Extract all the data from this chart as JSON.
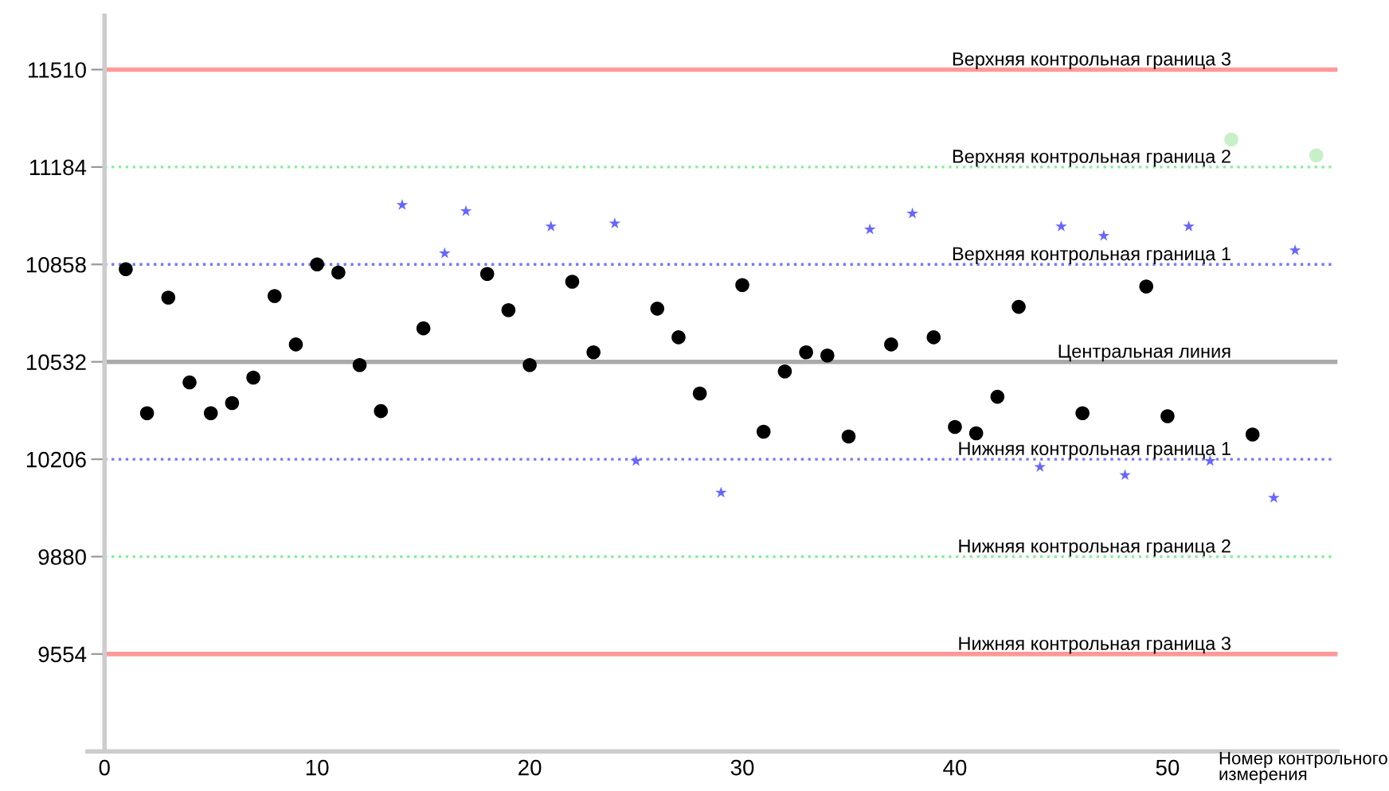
{
  "chart_data": {
    "type": "scatter",
    "xlabel": "Номер контрольного\nизмерения",
    "xlim": [
      -0.8,
      58
    ],
    "ylim": [
      9228,
      11690
    ],
    "xticks": [
      0,
      10,
      20,
      30,
      40,
      50
    ],
    "yticks": [
      9554,
      9880,
      10206,
      10532,
      10858,
      11184,
      11510
    ],
    "grid": false,
    "legend": false,
    "series": [
      {
        "color": "#000000",
        "marker": "circle",
        "x": [
          1,
          2,
          3,
          4,
          5,
          6,
          7,
          8,
          9,
          10,
          11,
          12,
          13,
          15,
          18,
          19,
          20,
          22,
          23,
          26,
          27,
          28,
          30,
          31,
          32,
          33,
          34,
          35,
          37,
          39,
          40,
          41,
          42,
          43,
          46,
          49,
          50,
          54
        ],
        "values": [
          10842,
          10360,
          10747,
          10463,
          10360,
          10394,
          10479,
          10752,
          10590,
          10858,
          10831,
          10521,
          10367,
          10644,
          10826,
          10705,
          10521,
          10800,
          10564,
          10710,
          10614,
          10426,
          10789,
          10298,
          10500,
          10564,
          10553,
          10282,
          10590,
          10614,
          10314,
          10293,
          10415,
          10716,
          10360,
          10784,
          10350,
          10289
        ]
      },
      {
        "color": "#6666ff",
        "marker": "star",
        "x": [
          14,
          16,
          17,
          21,
          24,
          25,
          29,
          36,
          38,
          44,
          45,
          47,
          48,
          51,
          52,
          55,
          56
        ],
        "values": [
          11057,
          10895,
          11036,
          10985,
          10995,
          10200,
          10094,
          10975,
          11028,
          10180,
          10985,
          10954,
          10153,
          10985,
          10200,
          10077,
          10905
        ]
      },
      {
        "color": "#c8f0c8",
        "marker": "circle",
        "x": [
          53,
          57
        ],
        "values": [
          11276,
          11223
        ]
      }
    ],
    "ref_lines": [
      {
        "axis": "y",
        "value": 11510,
        "label": "Верхняя контрольная граница 3",
        "color": "#ff9999",
        "line_style": "solid"
      },
      {
        "axis": "y",
        "value": 11184,
        "label": "Верхняя контрольная граница 2",
        "color": "#88ee99",
        "line_style": "dotted"
      },
      {
        "axis": "y",
        "value": 10858,
        "label": "Верхняя контрольная граница 1",
        "color": "#7777ff",
        "line_style": "dotted"
      },
      {
        "axis": "y",
        "value": 10532,
        "label": "Центральная линия",
        "color": "#aaaaaa",
        "line_style": "solid"
      },
      {
        "axis": "y",
        "value": 10206,
        "label": "Нижняя контрольная граница 1",
        "color": "#7777ff",
        "line_style": "dotted"
      },
      {
        "axis": "y",
        "value": 9880,
        "label": "Нижняя контрольная граница 2",
        "color": "#88ee99",
        "line_style": "dotted"
      },
      {
        "axis": "y",
        "value": 9554,
        "label": "Нижняя контрольная граница 3",
        "color": "#ff9999",
        "line_style": "solid"
      }
    ]
  }
}
